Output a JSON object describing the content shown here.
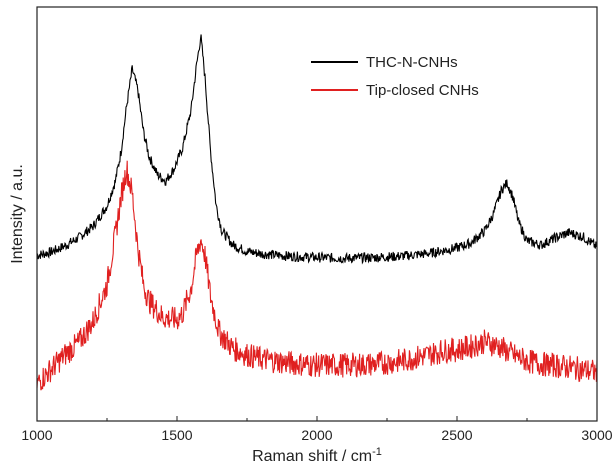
{
  "chart_data": {
    "type": "line",
    "xlabel": "Raman shift / cm",
    "xlabel_superscript": "-1",
    "ylabel": "Intensity / a.u.",
    "xlim": [
      1000,
      3000
    ],
    "ylim": [
      0,
      1
    ],
    "xticks": [
      1000,
      1500,
      2000,
      2500,
      3000
    ],
    "yticks_shown": false,
    "grid": false,
    "legend_position": "top-right",
    "series": [
      {
        "name": "THC-N-CNHs",
        "color": "#000000",
        "points": [
          [
            1000,
            0.4
          ],
          [
            1050,
            0.408
          ],
          [
            1100,
            0.423
          ],
          [
            1150,
            0.443
          ],
          [
            1200,
            0.47
          ],
          [
            1250,
            0.52
          ],
          [
            1280,
            0.58
          ],
          [
            1300,
            0.65
          ],
          [
            1320,
            0.76
          ],
          [
            1340,
            0.85
          ],
          [
            1360,
            0.8
          ],
          [
            1380,
            0.7
          ],
          [
            1400,
            0.64
          ],
          [
            1430,
            0.595
          ],
          [
            1460,
            0.58
          ],
          [
            1490,
            0.61
          ],
          [
            1520,
            0.66
          ],
          [
            1550,
            0.75
          ],
          [
            1570,
            0.86
          ],
          [
            1585,
            0.93
          ],
          [
            1600,
            0.83
          ],
          [
            1620,
            0.65
          ],
          [
            1640,
            0.52
          ],
          [
            1660,
            0.46
          ],
          [
            1700,
            0.425
          ],
          [
            1750,
            0.41
          ],
          [
            1800,
            0.404
          ],
          [
            1900,
            0.398
          ],
          [
            2000,
            0.395
          ],
          [
            2100,
            0.393
          ],
          [
            2200,
            0.395
          ],
          [
            2300,
            0.398
          ],
          [
            2400,
            0.405
          ],
          [
            2500,
            0.418
          ],
          [
            2550,
            0.43
          ],
          [
            2600,
            0.46
          ],
          [
            2630,
            0.5
          ],
          [
            2660,
            0.56
          ],
          [
            2680,
            0.575
          ],
          [
            2700,
            0.54
          ],
          [
            2720,
            0.48
          ],
          [
            2750,
            0.435
          ],
          [
            2800,
            0.425
          ],
          [
            2850,
            0.442
          ],
          [
            2900,
            0.455
          ],
          [
            2950,
            0.445
          ],
          [
            3000,
            0.42
          ]
        ]
      },
      {
        "name": "Tip-closed CNHs",
        "color": "#e02020",
        "points": [
          [
            1000,
            0.09
          ],
          [
            1050,
            0.125
          ],
          [
            1100,
            0.16
          ],
          [
            1150,
            0.19
          ],
          [
            1200,
            0.24
          ],
          [
            1250,
            0.33
          ],
          [
            1280,
            0.45
          ],
          [
            1300,
            0.54
          ],
          [
            1320,
            0.61
          ],
          [
            1340,
            0.55
          ],
          [
            1360,
            0.42
          ],
          [
            1380,
            0.33
          ],
          [
            1400,
            0.29
          ],
          [
            1450,
            0.25
          ],
          [
            1500,
            0.245
          ],
          [
            1520,
            0.26
          ],
          [
            1550,
            0.32
          ],
          [
            1570,
            0.4
          ],
          [
            1585,
            0.44
          ],
          [
            1600,
            0.4
          ],
          [
            1620,
            0.3
          ],
          [
            1650,
            0.215
          ],
          [
            1700,
            0.175
          ],
          [
            1750,
            0.16
          ],
          [
            1800,
            0.15
          ],
          [
            1900,
            0.14
          ],
          [
            2000,
            0.135
          ],
          [
            2100,
            0.135
          ],
          [
            2200,
            0.137
          ],
          [
            2300,
            0.145
          ],
          [
            2400,
            0.16
          ],
          [
            2450,
            0.17
          ],
          [
            2500,
            0.172
          ],
          [
            2550,
            0.18
          ],
          [
            2600,
            0.192
          ],
          [
            2650,
            0.18
          ],
          [
            2700,
            0.16
          ],
          [
            2750,
            0.145
          ],
          [
            2800,
            0.138
          ],
          [
            2900,
            0.13
          ],
          [
            3000,
            0.118
          ]
        ]
      }
    ]
  }
}
